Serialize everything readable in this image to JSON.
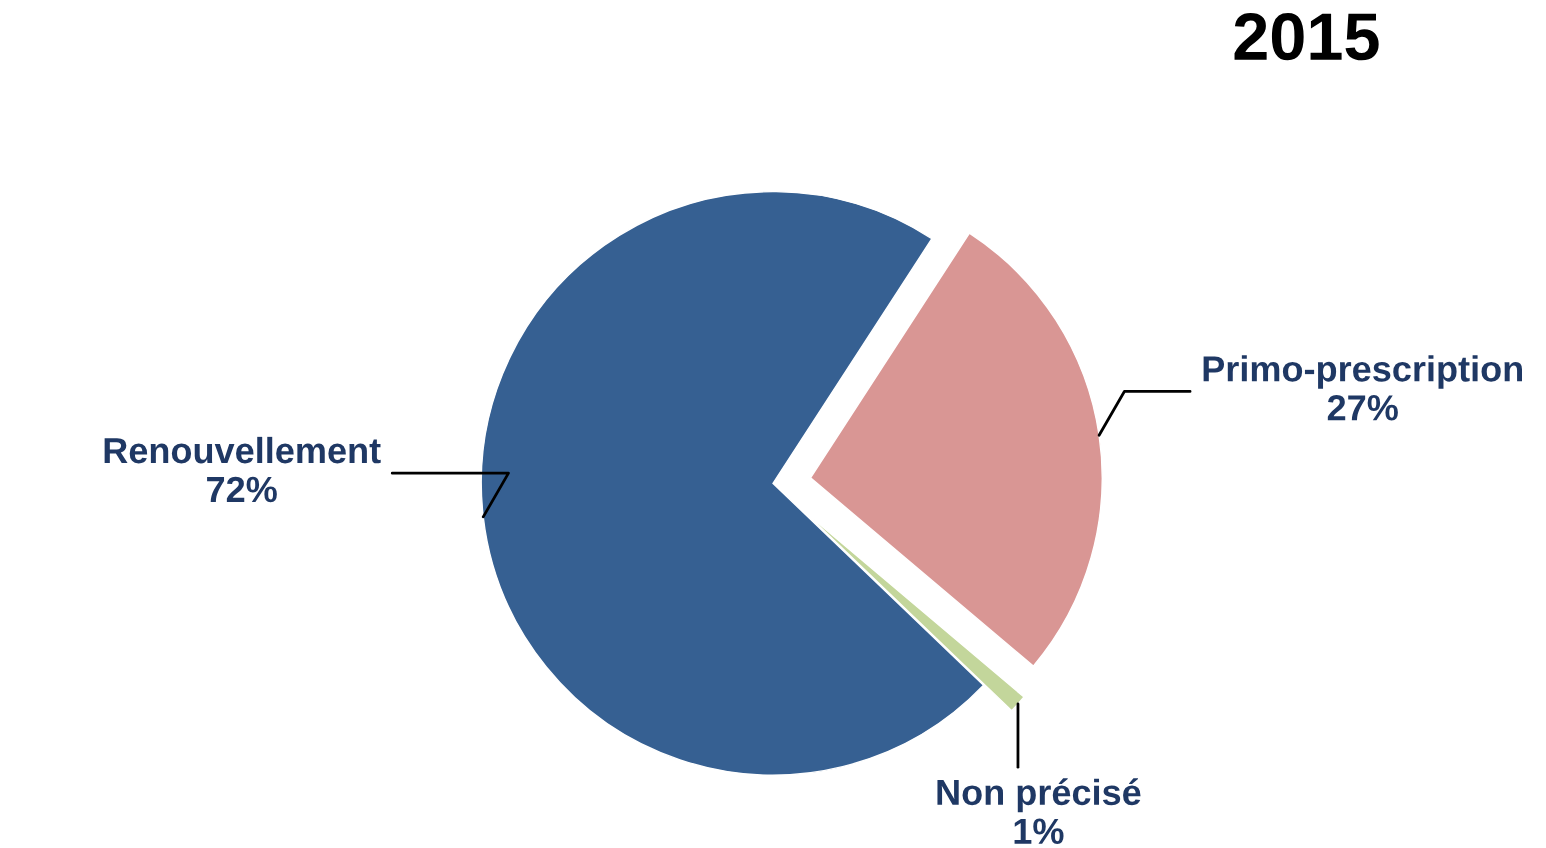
{
  "chart_data": {
    "type": "pie",
    "title": "2015",
    "categories": [
      "Primo-prescription",
      "Non précisé",
      "Renouvellement"
    ],
    "values": [
      27,
      1,
      72
    ],
    "value_labels": [
      "27%",
      "1%",
      "72%"
    ],
    "colors": [
      "#d99694",
      "#c3d69b",
      "#366092"
    ]
  }
}
